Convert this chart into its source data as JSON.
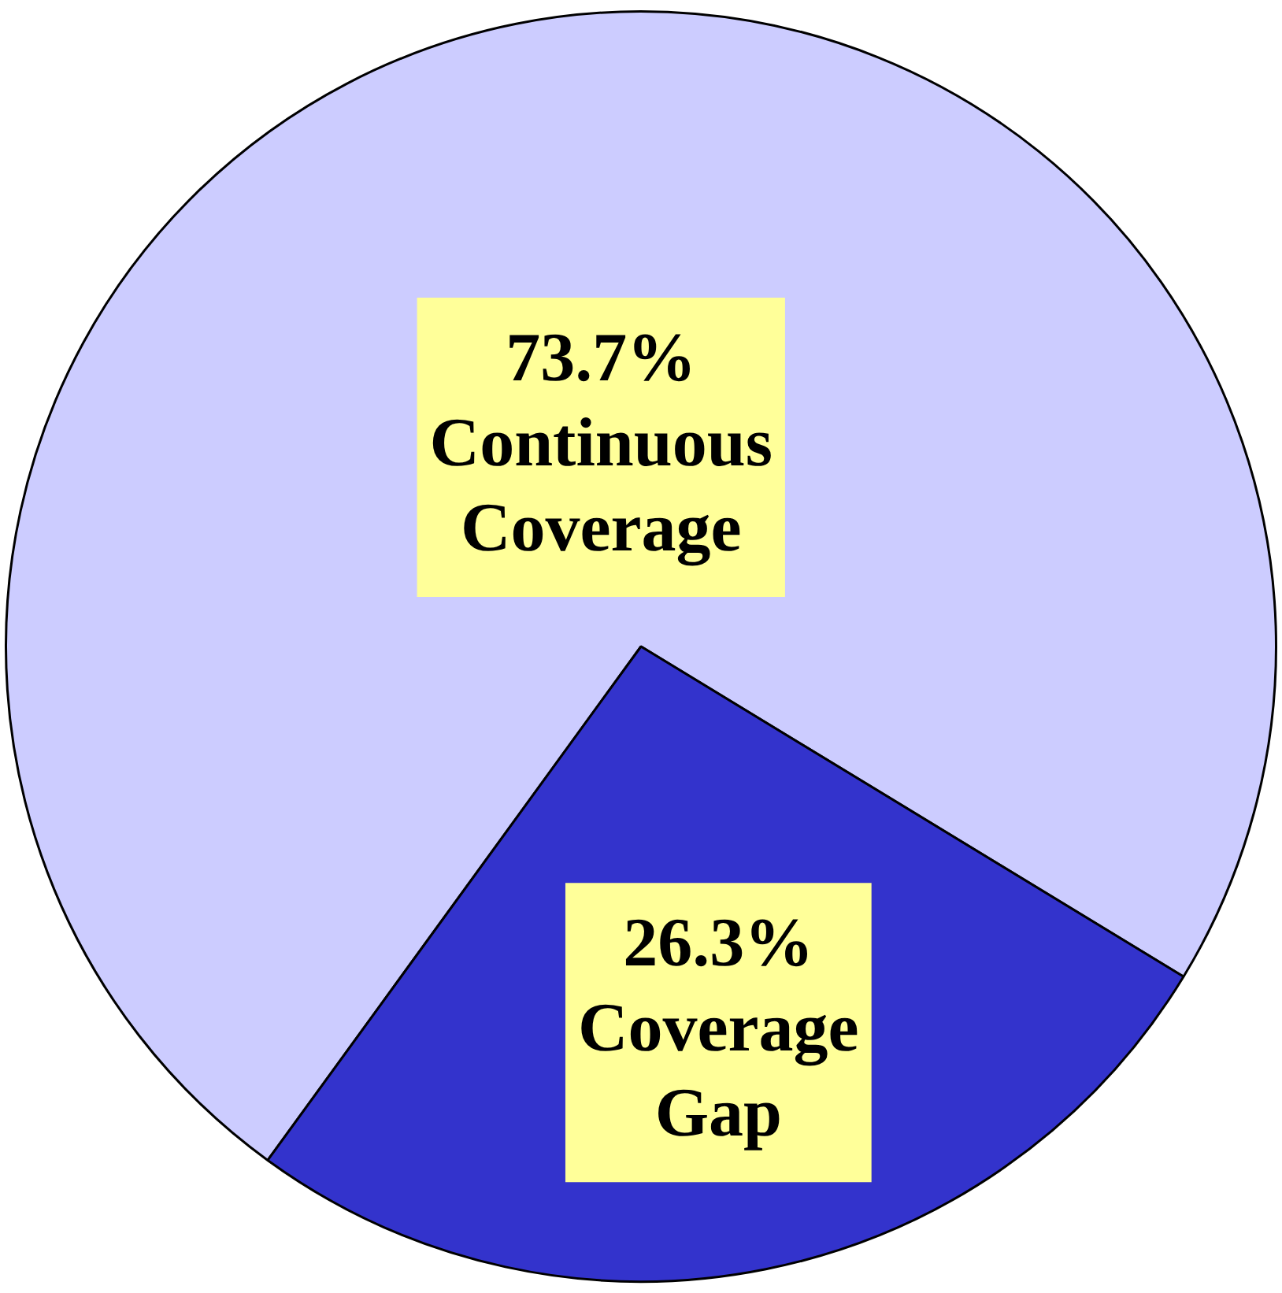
{
  "chart_data": {
    "type": "pie",
    "categories": [
      "Continuous Coverage",
      "Coverage Gap"
    ],
    "values": [
      73.7,
      26.3
    ],
    "colors": [
      "#ccccff",
      "#3333cc"
    ],
    "value_labels": [
      "73.7%",
      "26.3%"
    ],
    "legend": false
  }
}
